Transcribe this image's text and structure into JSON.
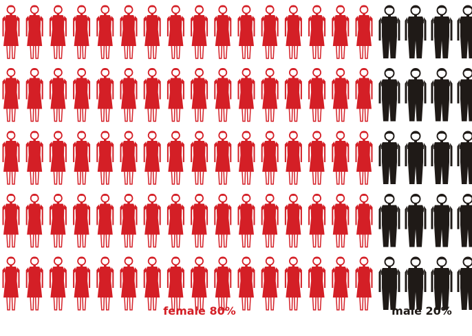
{
  "chart_data": {
    "type": "pictogram",
    "categories": [
      "female",
      "male"
    ],
    "series": [
      {
        "name": "female",
        "value": 80,
        "label": "female 80%",
        "color": "#d41f26",
        "icon": "woman-figure-icon"
      },
      {
        "name": "male",
        "value": 20,
        "label": "male 20%",
        "color": "#1f1a17",
        "icon": "man-figure-icon"
      }
    ],
    "grid": {
      "rows": 5,
      "cols": 20
    },
    "unit": "percent"
  }
}
